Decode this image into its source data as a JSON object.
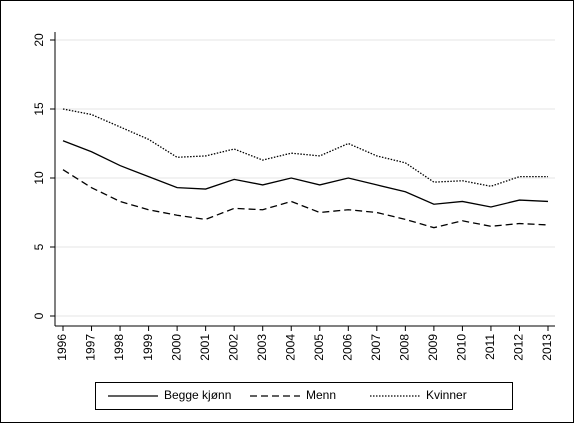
{
  "chart_data": {
    "type": "line",
    "categories": [
      "1996",
      "1997",
      "1998",
      "1999",
      "2000",
      "2001",
      "2002",
      "2003",
      "2004",
      "2005",
      "2006",
      "2007",
      "2008",
      "2009",
      "2010",
      "2011",
      "2012",
      "2013"
    ],
    "series": [
      {
        "name": "Begge kjønn",
        "color": "#000000",
        "style": "solid",
        "values": [
          12.7,
          11.9,
          10.9,
          10.1,
          9.3,
          9.2,
          9.9,
          9.5,
          10.0,
          9.5,
          10.0,
          9.5,
          9.0,
          8.1,
          8.3,
          7.9,
          8.4,
          8.3
        ]
      },
      {
        "name": "Menn",
        "color": "#000000",
        "style": "dashed",
        "values": [
          10.6,
          9.3,
          8.3,
          7.7,
          7.3,
          7.0,
          7.8,
          7.7,
          8.3,
          7.5,
          7.7,
          7.5,
          7.0,
          6.4,
          6.9,
          6.5,
          6.7,
          6.6
        ]
      },
      {
        "name": "Kvinner",
        "color": "#000000",
        "style": "dotted",
        "values": [
          15.0,
          14.6,
          13.7,
          12.8,
          11.5,
          11.6,
          12.1,
          11.3,
          11.8,
          11.6,
          12.5,
          11.6,
          11.1,
          9.7,
          9.8,
          9.4,
          10.1,
          10.1
        ]
      }
    ],
    "ylim": [
      0,
      20
    ],
    "yticks": [
      0,
      5,
      10,
      15,
      20
    ],
    "grid": true,
    "legend": "bottom"
  }
}
